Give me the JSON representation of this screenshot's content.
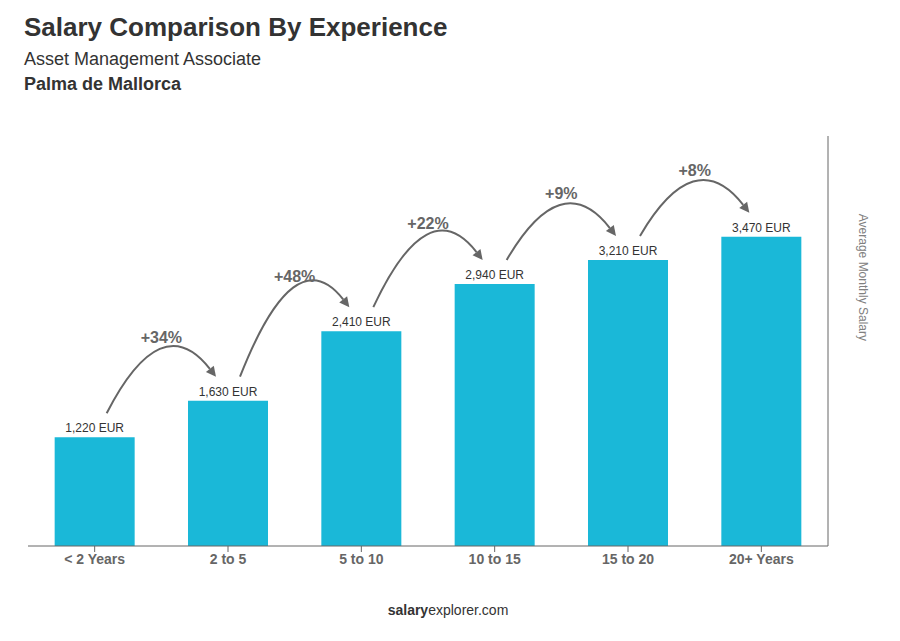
{
  "chart_data": {
    "type": "bar",
    "title": "Salary Comparison By Experience",
    "subtitle": [
      "Asset Management Associate",
      "Palma de Mallorca"
    ],
    "ylabel": "Average Monthly Salary",
    "categories": [
      "< 2 Years",
      "2 to 5",
      "5 to 10",
      "10 to 15",
      "15 to 20",
      "20+ Years"
    ],
    "values": [
      1220,
      1630,
      2410,
      2940,
      3210,
      3470
    ],
    "value_labels": [
      "1,220 EUR",
      "1,630 EUR",
      "2,410 EUR",
      "2,940 EUR",
      "3,210 EUR",
      "3,470 EUR"
    ],
    "data_labels": true,
    "color": "#1ab8d8",
    "ylim": [
      0,
      4600
    ],
    "yticks": [],
    "tick_labels": "x",
    "grid": false,
    "annotations": [
      "+34%",
      "+48%",
      "+22%",
      "+9%",
      "+8%",
      "salary",
      "explorer.com"
    ]
  }
}
